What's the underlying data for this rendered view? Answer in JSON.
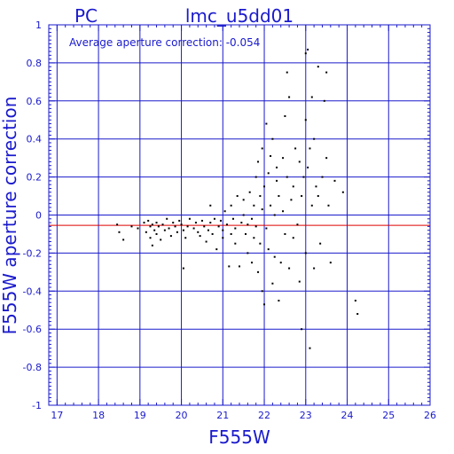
{
  "chart_data": {
    "type": "scatter",
    "title": "lmc_u5dd01",
    "subtitle": "PC",
    "annotation": "Average aperture correction: -0.054",
    "xlabel": "F555W",
    "ylabel": "F555W aperture correction",
    "xlim": [
      16.8,
      26
    ],
    "ylim": [
      -1,
      1
    ],
    "xticks": [
      "17",
      "18",
      "19",
      "20",
      "21",
      "22",
      "23",
      "24",
      "25",
      "26"
    ],
    "yticks": [
      "1",
      "0.8",
      "0.6",
      "0.4",
      "0.2",
      "0",
      "-0.2",
      "-0.4",
      "-0.6",
      "-0.8",
      "-1"
    ],
    "grid": true,
    "reference_line_y": -0.054,
    "colors": {
      "frame": "#1a1acc",
      "points": "#000000",
      "reference_line": "#dd0000"
    },
    "points": [
      [
        18.45,
        -0.05
      ],
      [
        18.5,
        -0.09
      ],
      [
        18.6,
        -0.13
      ],
      [
        18.8,
        -0.06
      ],
      [
        18.95,
        -0.07
      ],
      [
        19.1,
        -0.04
      ],
      [
        19.15,
        -0.09
      ],
      [
        19.2,
        -0.03
      ],
      [
        19.25,
        -0.06
      ],
      [
        19.25,
        -0.12
      ],
      [
        19.3,
        -0.05
      ],
      [
        19.3,
        -0.16
      ],
      [
        19.35,
        -0.08
      ],
      [
        19.4,
        -0.04
      ],
      [
        19.4,
        -0.1
      ],
      [
        19.45,
        -0.06
      ],
      [
        19.5,
        -0.13
      ],
      [
        19.55,
        -0.05
      ],
      [
        19.6,
        -0.08
      ],
      [
        19.65,
        -0.02
      ],
      [
        19.7,
        -0.07
      ],
      [
        19.75,
        -0.11
      ],
      [
        19.8,
        -0.04
      ],
      [
        19.85,
        -0.06
      ],
      [
        19.9,
        -0.09
      ],
      [
        19.95,
        -0.03
      ],
      [
        20.0,
        -0.05
      ],
      [
        20.05,
        -0.28
      ],
      [
        20.05,
        -0.08
      ],
      [
        20.1,
        -0.12
      ],
      [
        20.15,
        -0.06
      ],
      [
        20.2,
        -0.02
      ],
      [
        20.3,
        -0.07
      ],
      [
        20.35,
        -0.04
      ],
      [
        20.4,
        -0.09
      ],
      [
        20.45,
        -0.11
      ],
      [
        20.5,
        -0.03
      ],
      [
        20.55,
        -0.06
      ],
      [
        20.6,
        -0.14
      ],
      [
        20.65,
        -0.08
      ],
      [
        20.7,
        -0.04
      ],
      [
        20.7,
        0.05
      ],
      [
        20.75,
        -0.1
      ],
      [
        20.8,
        -0.02
      ],
      [
        20.85,
        -0.18
      ],
      [
        20.9,
        -0.06
      ],
      [
        20.95,
        -0.03
      ],
      [
        21.0,
        -0.12
      ],
      [
        21.0,
        -0.08
      ],
      [
        21.05,
        0.02
      ],
      [
        21.1,
        -0.05
      ],
      [
        21.15,
        -0.27
      ],
      [
        21.2,
        -0.1
      ],
      [
        21.2,
        0.05
      ],
      [
        21.25,
        -0.02
      ],
      [
        21.3,
        -0.07
      ],
      [
        21.3,
        -0.15
      ],
      [
        21.35,
        0.1
      ],
      [
        21.4,
        -0.27
      ],
      [
        21.45,
        -0.04
      ],
      [
        21.5,
        0.0
      ],
      [
        21.5,
        0.08
      ],
      [
        21.55,
        -0.1
      ],
      [
        21.6,
        -0.05
      ],
      [
        21.6,
        -0.2
      ],
      [
        21.65,
        0.12
      ],
      [
        21.7,
        -0.02
      ],
      [
        21.7,
        -0.25
      ],
      [
        21.75,
        0.05
      ],
      [
        21.75,
        -0.12
      ],
      [
        21.8,
        0.2
      ],
      [
        21.8,
        -0.06
      ],
      [
        21.85,
        0.28
      ],
      [
        21.85,
        -0.3
      ],
      [
        21.9,
        0.1
      ],
      [
        21.9,
        -0.15
      ],
      [
        21.95,
        0.03
      ],
      [
        21.95,
        0.35
      ],
      [
        21.95,
        -0.4
      ],
      [
        22.0,
        -0.47
      ],
      [
        22.0,
        0.15
      ],
      [
        22.05,
        0.48
      ],
      [
        22.05,
        -0.07
      ],
      [
        22.1,
        0.22
      ],
      [
        22.1,
        -0.18
      ],
      [
        22.15,
        0.05
      ],
      [
        22.15,
        0.31
      ],
      [
        22.2,
        -0.36
      ],
      [
        22.2,
        0.4
      ],
      [
        22.25,
        0.0
      ],
      [
        22.25,
        -0.22
      ],
      [
        22.3,
        0.18
      ],
      [
        22.3,
        0.25
      ],
      [
        22.35,
        -0.45
      ],
      [
        22.35,
        0.1
      ],
      [
        22.4,
        -0.25
      ],
      [
        22.45,
        0.3
      ],
      [
        22.45,
        0.02
      ],
      [
        22.5,
        0.52
      ],
      [
        22.5,
        -0.1
      ],
      [
        22.55,
        0.75
      ],
      [
        22.55,
        0.2
      ],
      [
        22.6,
        -0.28
      ],
      [
        22.6,
        0.62
      ],
      [
        22.65,
        0.08
      ],
      [
        22.7,
        0.15
      ],
      [
        22.7,
        -0.12
      ],
      [
        22.75,
        0.35
      ],
      [
        22.8,
        -0.05
      ],
      [
        22.85,
        0.28
      ],
      [
        22.85,
        -0.35
      ],
      [
        22.9,
        0.1
      ],
      [
        22.9,
        -0.6
      ],
      [
        22.95,
        0.2
      ],
      [
        23.0,
        0.5
      ],
      [
        23.0,
        0.85
      ],
      [
        23.0,
        -0.2
      ],
      [
        23.05,
        0.25
      ],
      [
        23.05,
        0.87
      ],
      [
        23.1,
        -0.7
      ],
      [
        23.1,
        0.35
      ],
      [
        23.15,
        0.05
      ],
      [
        23.15,
        0.62
      ],
      [
        23.2,
        -0.28
      ],
      [
        23.2,
        0.4
      ],
      [
        23.25,
        0.15
      ],
      [
        23.3,
        0.78
      ],
      [
        23.3,
        0.1
      ],
      [
        23.35,
        -0.15
      ],
      [
        23.4,
        0.2
      ],
      [
        23.45,
        0.6
      ],
      [
        23.5,
        0.75
      ],
      [
        23.5,
        0.3
      ],
      [
        23.55,
        0.05
      ],
      [
        23.6,
        -0.25
      ],
      [
        23.7,
        0.18
      ],
      [
        23.9,
        0.12
      ],
      [
        24.2,
        -0.45
      ],
      [
        24.25,
        -0.52
      ]
    ]
  }
}
